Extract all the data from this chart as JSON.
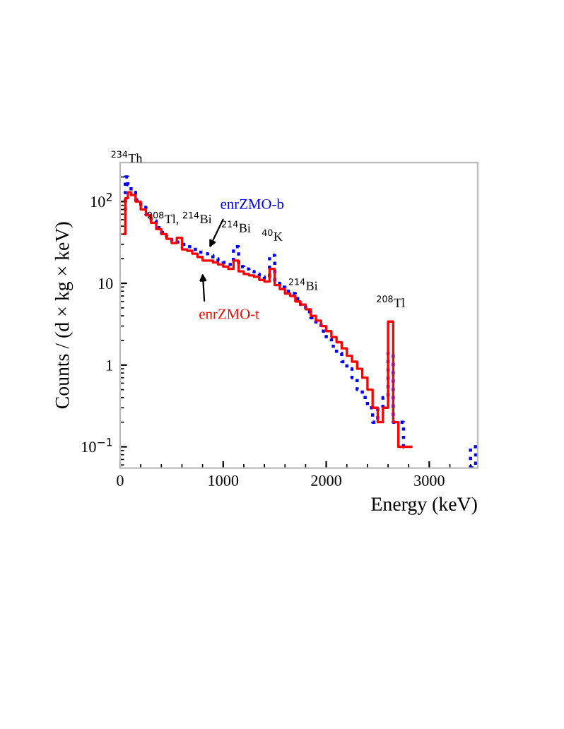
{
  "chart_data": {
    "type": "step",
    "xlabel": "Energy (keV)",
    "ylabel": "Counts / (d × kg × keV)",
    "series": [
      {
        "name": "enrZMO-b",
        "color": "#0000ff",
        "line_style": "dotted",
        "x": [
          37.5,
          62.5,
          87.5,
          125,
          175,
          225,
          275,
          325,
          375,
          425,
          475,
          525,
          575,
          625,
          675,
          725,
          775,
          825,
          875,
          925,
          975,
          1025,
          1075,
          1125,
          1175,
          1225,
          1275,
          1325,
          1375,
          1425,
          1475,
          1525,
          1575,
          1625,
          1675,
          1725,
          1775,
          1825,
          1875,
          1925,
          1975,
          2025,
          2075,
          2125,
          2175,
          2225,
          2275,
          2325,
          2375,
          2425,
          2475,
          2525,
          2575,
          2625,
          2675,
          2725,
          2775
        ],
        "values": [
          80,
          200,
          160,
          130,
          105,
          85,
          70,
          58,
          48,
          42,
          37,
          33,
          32,
          30,
          28,
          26,
          24,
          23,
          22,
          20,
          19,
          18,
          17,
          28,
          16,
          15,
          14,
          13,
          12,
          11.5,
          22,
          10,
          9,
          8,
          7.5,
          6.5,
          5.5,
          4.5,
          3.8,
          3.2,
          2.6,
          2.1,
          1.7,
          1.4,
          1.1,
          0.9,
          0.7,
          0.5,
          0.4,
          0.3,
          0.2,
          0.3,
          0.4,
          1.4,
          0.2,
          0.2,
          0.1
        ]
      },
      {
        "name": "enrZMO-t",
        "color": "#ff0000",
        "line_style": "solid",
        "x": [
          37.5,
          62.5,
          87.5,
          125,
          175,
          225,
          275,
          325,
          375,
          425,
          475,
          525,
          575,
          625,
          675,
          725,
          775,
          825,
          875,
          925,
          975,
          1025,
          1075,
          1125,
          1175,
          1225,
          1275,
          1325,
          1375,
          1425,
          1475,
          1525,
          1575,
          1625,
          1675,
          1725,
          1775,
          1825,
          1875,
          1925,
          1975,
          2025,
          2075,
          2125,
          2175,
          2225,
          2275,
          2325,
          2375,
          2425,
          2475,
          2525,
          2575,
          2625,
          2675,
          2725,
          2775,
          2825
        ],
        "values": [
          40,
          110,
          130,
          120,
          100,
          80,
          68,
          55,
          46,
          40,
          35,
          31,
          36,
          26,
          25,
          23,
          21,
          19,
          19,
          18,
          17,
          16,
          15,
          19,
          14,
          13,
          12.5,
          12,
          11,
          10.5,
          15,
          9.5,
          8.5,
          7.5,
          7,
          6,
          5.5,
          4.8,
          4,
          3.5,
          3,
          2.6,
          2.2,
          1.9,
          1.6,
          1.3,
          1.1,
          0.9,
          0.7,
          0.5,
          0.3,
          0.2,
          0.3,
          3.4,
          0.2,
          0.1,
          0.1,
          0.1
        ]
      },
      {
        "type": "bar",
        "color": "#0000ff",
        "line_style": "dotted",
        "x": [
          3425
        ],
        "values": [
          0.1
        ]
      }
    ],
    "log": "y",
    "xlim": [
      0,
      3470
    ],
    "xticks": [
      0,
      1000,
      2000,
      3000
    ],
    "ylim": [
      0.055,
      300
    ],
    "yticks": [
      {
        "value": 0.1,
        "label": "10$^{−1}$"
      },
      1,
      10,
      {
        "value": 100,
        "label": "10$^{2}$"
      }
    ],
    "grid": false,
    "annotations": [
      {
        "text": "$^{234}$Th",
        "x": 62.5,
        "y": 200
      },
      {
        "text": "$^{208}$Tl, $^{214}$Bi",
        "x": 575,
        "y": 36
      },
      {
        "text": "$^{214}$Bi",
        "x": 1125,
        "y": 28
      },
      {
        "text": "$^{40}$K",
        "x": 1475,
        "y": 22
      },
      {
        "text": "$^{214}$Bi",
        "x": 1775,
        "y": 5.5
      },
      {
        "text": "$^{208}$Tl",
        "x": 2625,
        "y": 3.4
      }
    ]
  }
}
